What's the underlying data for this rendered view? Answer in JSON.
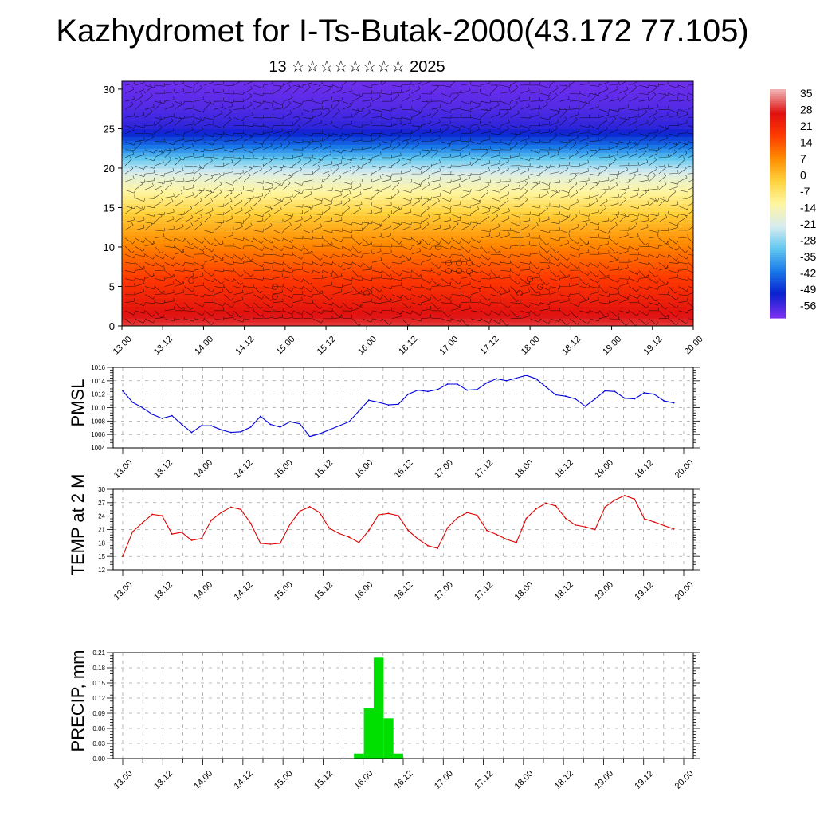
{
  "header": {
    "title": "Kazhydromet for I-Ts-Butak-2000(43.172 77.105)",
    "subtitle": "13 ☆☆☆☆☆☆☆☆ 2025"
  },
  "chart_data": [
    {
      "type": "heatmap",
      "title": "",
      "xlabel": "",
      "ylabel": "",
      "x_ticks": [
        "13.00",
        "13.12",
        "14.00",
        "14.12",
        "15.00",
        "15.12",
        "16.00",
        "16.12",
        "17.00",
        "17.12",
        "18.00",
        "18.12",
        "19.00",
        "19.12",
        "20.00"
      ],
      "ylim": [
        0,
        31
      ],
      "y_ticks": [
        0,
        5,
        10,
        15,
        20,
        25,
        30
      ],
      "colorbar": {
        "labels": [
          "35",
          "28",
          "21",
          "14",
          "7",
          "0",
          "-7",
          "-14",
          "-21",
          "-28",
          "-35",
          "-42",
          "-49",
          "-56"
        ],
        "colors": [
          "#f0b0b0",
          "#e01010",
          "#ff3a00",
          "#ff8c00",
          "#ffd23c",
          "#fff6a0",
          "#d8ecf0",
          "#62c8f0",
          "#1878e8",
          "#0a20d0",
          "#7a30f0"
        ]
      },
      "temperature_profile": [
        {
          "level": 0,
          "value": 28
        },
        {
          "level": 5,
          "value": 18
        },
        {
          "level": 10,
          "value": 7
        },
        {
          "level": 14,
          "value": -3
        },
        {
          "level": 17,
          "value": -14
        },
        {
          "level": 19,
          "value": -21
        },
        {
          "level": 21,
          "value": -32
        },
        {
          "level": 23,
          "value": -45
        },
        {
          "level": 25,
          "value": -56
        },
        {
          "level": 28,
          "value": -60
        },
        {
          "level": 31,
          "value": -62
        }
      ],
      "overlay": "wind barbs"
    },
    {
      "type": "line",
      "title": "",
      "ylabel": "PMSL",
      "ylim": [
        1004,
        1016
      ],
      "y_ticks": [
        1004,
        1006,
        1008,
        1010,
        1012,
        1014,
        1016
      ],
      "x_ticks": [
        "13.00",
        "13.12",
        "14.00",
        "14.12",
        "15.00",
        "15.12",
        "16.00",
        "16.12",
        "17.00",
        "17.12",
        "18.00",
        "18.12",
        "19.00",
        "19.12",
        "20.00"
      ],
      "grid": true,
      "color": "#0000dd",
      "series": [
        {
          "name": "",
          "values": [
            1012.5,
            1010.8,
            1010.0,
            1009.0,
            1008.4,
            1008.8,
            1007.5,
            1006.3,
            1007.3,
            1007.3,
            1006.7,
            1006.3,
            1006.4,
            1007.1,
            1008.7,
            1007.5,
            1007.1,
            1007.9,
            1007.6,
            1005.7,
            1006.1,
            1006.7,
            1007.3,
            1007.9,
            1009.5,
            1011.1,
            1010.8,
            1010.4,
            1010.5,
            1012.0,
            1012.6,
            1012.4,
            1012.7,
            1013.5,
            1013.5,
            1012.6,
            1012.7,
            1013.7,
            1014.3,
            1014.0,
            1014.4,
            1014.8,
            1014.3,
            1013.1,
            1011.9,
            1011.7,
            1011.3,
            1010.2,
            1011.3,
            1012.5,
            1012.4,
            1011.4,
            1011.3,
            1012.2,
            1012.0,
            1011.0,
            1010.7
          ]
        }
      ]
    },
    {
      "type": "line",
      "title": "",
      "ylabel": "TEMP at 2 M",
      "ylim": [
        12,
        30
      ],
      "y_ticks": [
        12,
        15,
        18,
        21,
        24,
        27,
        30
      ],
      "x_ticks": [
        "13.00",
        "13.12",
        "14.00",
        "14.12",
        "15.00",
        "15.12",
        "16.00",
        "16.12",
        "17.00",
        "17.12",
        "18.00",
        "18.12",
        "19.00",
        "19.12",
        "20.00"
      ],
      "grid": true,
      "color": "#dd0000",
      "series": [
        {
          "name": "",
          "values": [
            15.0,
            20.5,
            22.5,
            24.4,
            24.1,
            20.0,
            20.4,
            18.6,
            19.0,
            23.1,
            24.8,
            26.0,
            25.5,
            22.4,
            17.9,
            17.7,
            17.9,
            22.2,
            25.1,
            26.1,
            24.8,
            21.3,
            20.1,
            19.3,
            18.1,
            20.8,
            24.3,
            24.6,
            24.1,
            20.8,
            18.9,
            17.4,
            16.8,
            21.4,
            23.6,
            24.8,
            24.2,
            20.8,
            19.9,
            18.8,
            18.1,
            23.5,
            25.6,
            26.9,
            26.3,
            23.5,
            22.0,
            21.6,
            21.0,
            26.0,
            27.6,
            28.6,
            27.8,
            23.4,
            22.7,
            21.9,
            21.1
          ]
        }
      ]
    },
    {
      "type": "bar",
      "title": "",
      "ylabel": "PRECIP, mm",
      "ylim": [
        0,
        0.21
      ],
      "y_ticks": [
        "0.00",
        "0.03",
        "0.06",
        "0.09",
        "0.12",
        "0.15",
        "0.18",
        "0.21"
      ],
      "x_ticks": [
        "13.00",
        "13.12",
        "14.00",
        "14.12",
        "15.00",
        "15.12",
        "16.00",
        "16.12",
        "17.00",
        "17.12",
        "18.00",
        "18.12",
        "19.00",
        "19.12",
        "20.00"
      ],
      "grid": true,
      "color": "#00e000",
      "series": [
        {
          "name": "",
          "values": [
            0,
            0,
            0,
            0,
            0,
            0,
            0,
            0,
            0,
            0,
            0,
            0,
            0,
            0,
            0,
            0,
            0,
            0,
            0,
            0,
            0,
            0,
            0,
            0,
            0.01,
            0.1,
            0.2,
            0.08,
            0.01,
            0,
            0,
            0,
            0,
            0,
            0,
            0,
            0,
            0,
            0,
            0,
            0,
            0,
            0,
            0,
            0,
            0,
            0,
            0,
            0,
            0,
            0,
            0,
            0,
            0,
            0,
            0,
            0
          ]
        }
      ]
    }
  ]
}
